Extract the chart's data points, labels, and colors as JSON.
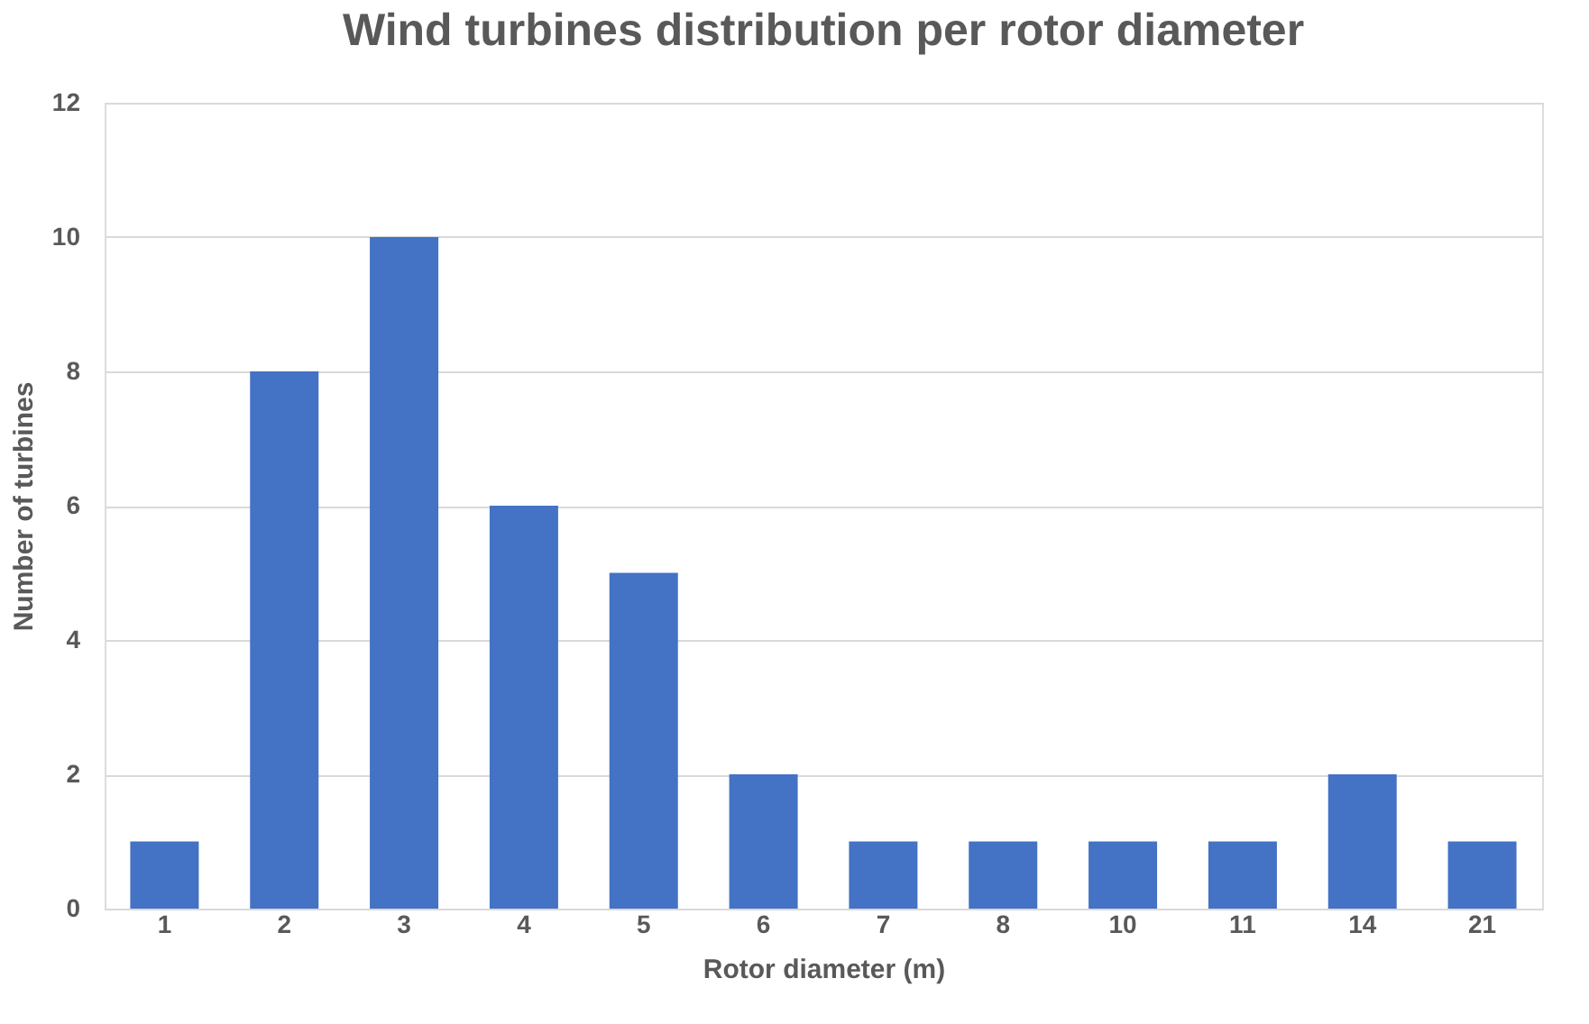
{
  "chart_data": {
    "type": "bar",
    "title": "Wind turbines distribution per rotor diameter",
    "xlabel": "Rotor diameter (m)",
    "ylabel": "Number of turbines",
    "categories": [
      "1",
      "2",
      "3",
      "4",
      "5",
      "6",
      "7",
      "8",
      "10",
      "11",
      "14",
      "21"
    ],
    "values": [
      1,
      8,
      10,
      6,
      5,
      2,
      1,
      1,
      1,
      1,
      2,
      1
    ],
    "color": "#4472c4",
    "ylim": [
      0,
      12
    ],
    "yticks": [
      0,
      2,
      4,
      6,
      8,
      10,
      12
    ],
    "grid": "y"
  }
}
